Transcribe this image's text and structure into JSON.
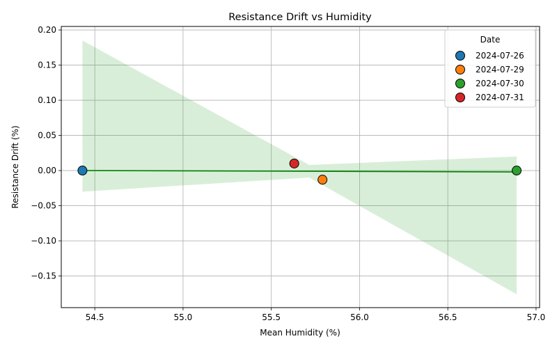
{
  "chart_data": {
    "type": "scatter",
    "title": "Resistance Drift vs Humidity",
    "xlabel": "Mean Humidity (%)",
    "ylabel": "Resistance Drift (%)",
    "xlim": [
      54.31,
      57.02
    ],
    "ylim": [
      -0.195,
      0.205
    ],
    "xticks": [
      54.5,
      55.0,
      55.5,
      56.0,
      56.5,
      57.0
    ],
    "xtick_labels": [
      "54.5",
      "55.0",
      "55.5",
      "56.0",
      "56.5",
      "57.0"
    ],
    "yticks": [
      -0.15,
      -0.1,
      -0.05,
      0.0,
      0.05,
      0.1,
      0.15,
      0.2
    ],
    "ytick_labels": [
      "−0.15",
      "−0.10",
      "−0.05",
      "0.00",
      "0.05",
      "0.10",
      "0.15",
      "0.20"
    ],
    "grid": true,
    "legend": {
      "title": "Date",
      "placement": "top-right"
    },
    "series": [
      {
        "name": "2024-07-26",
        "color": "#1f77b4",
        "x": 54.43,
        "y": 0.0
      },
      {
        "name": "2024-07-29",
        "color": "#ff7f0e",
        "x": 55.79,
        "y": -0.013
      },
      {
        "name": "2024-07-30",
        "color": "#2ca02c",
        "x": 56.89,
        "y": 0.0
      },
      {
        "name": "2024-07-31",
        "color": "#d62728",
        "x": 55.63,
        "y": 0.01
      }
    ],
    "regression": {
      "color": "#008000",
      "band_color": "#2ca02c",
      "x": [
        54.43,
        55.715,
        56.89
      ],
      "y": [
        0.0,
        -0.001,
        -0.002
      ],
      "upper": [
        0.185,
        0.008,
        0.02
      ],
      "lower": [
        -0.03,
        -0.01,
        -0.176
      ]
    }
  }
}
